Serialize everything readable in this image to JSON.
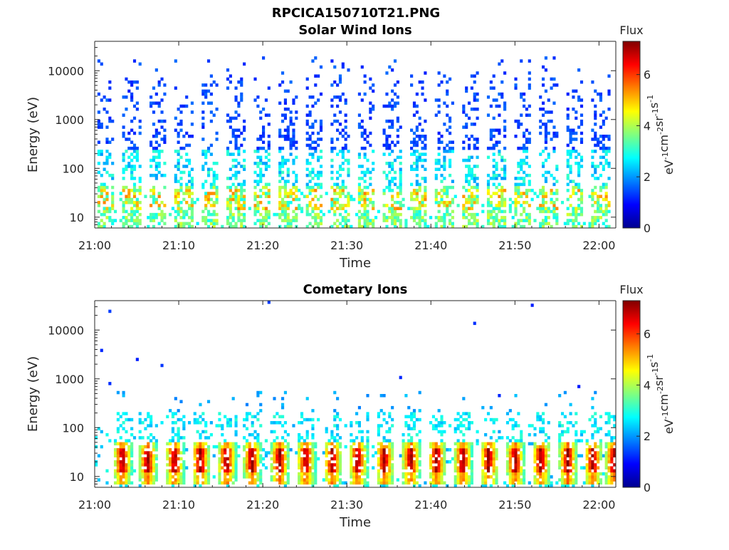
{
  "figure": {
    "filename": "RPCICA150710T21.PNG"
  },
  "chart_data": [
    {
      "type": "heatmap",
      "title": "Solar Wind Ions",
      "xlabel": "Time",
      "ylabel": "Energy (eV)",
      "x_range": [
        "21:00",
        "22:02"
      ],
      "x_ticks": [
        "21:00",
        "21:10",
        "21:20",
        "21:30",
        "21:40",
        "21:50",
        "22:00"
      ],
      "y_scale": "log",
      "y_range": [
        6,
        40000
      ],
      "y_ticks": [
        "10",
        "100",
        "1000",
        "10000"
      ],
      "colorbar": {
        "title": "Flux",
        "label": "eV-1cm-2sr-1s-1",
        "range": [
          0,
          7.3
        ],
        "ticks": [
          "0",
          "2",
          "4",
          "6"
        ]
      },
      "pattern": {
        "description_free": true,
        "burst_start_minutes": [
          0.3,
          3.4,
          6.5,
          9.6,
          12.7,
          15.8,
          18.9,
          22.0,
          25.1,
          28.2,
          31.3,
          34.4,
          37.5,
          40.6,
          43.7,
          46.8,
          49.9,
          53.0,
          56.1,
          59.2
        ],
        "burst_width_minutes": 2.0,
        "peak_flux_low_energy": 5.5,
        "peak_energy_eV": 25,
        "max_energy_eV": 20000
      }
    },
    {
      "type": "heatmap",
      "title": "Cometary Ions",
      "xlabel": "Time",
      "ylabel": "Energy (eV)",
      "x_range": [
        "21:00",
        "22:02"
      ],
      "x_ticks": [
        "21:00",
        "21:10",
        "21:20",
        "21:30",
        "21:40",
        "21:50",
        "22:00"
      ],
      "y_scale": "log",
      "y_range": [
        6,
        40000
      ],
      "y_ticks": [
        "10",
        "100",
        "1000",
        "10000"
      ],
      "colorbar": {
        "title": "Flux",
        "label": "eV-1cm-2sr-1s-1",
        "range": [
          0,
          7.3
        ],
        "ticks": [
          "0",
          "2",
          "4",
          "6"
        ]
      },
      "pattern": {
        "burst_start_minutes": [
          2.3,
          5.3,
          8.5,
          11.6,
          14.7,
          17.7,
          21.0,
          24.1,
          27.3,
          30.3,
          33.5,
          36.6,
          39.7,
          42.8,
          45.9,
          49.0,
          52.1,
          55.3,
          58.3,
          60.8
        ],
        "burst_width_minutes": 2.2,
        "peak_flux_low_energy": 7.0,
        "peak_energy_eV": 20,
        "max_energy_eV": 12000
      }
    }
  ]
}
